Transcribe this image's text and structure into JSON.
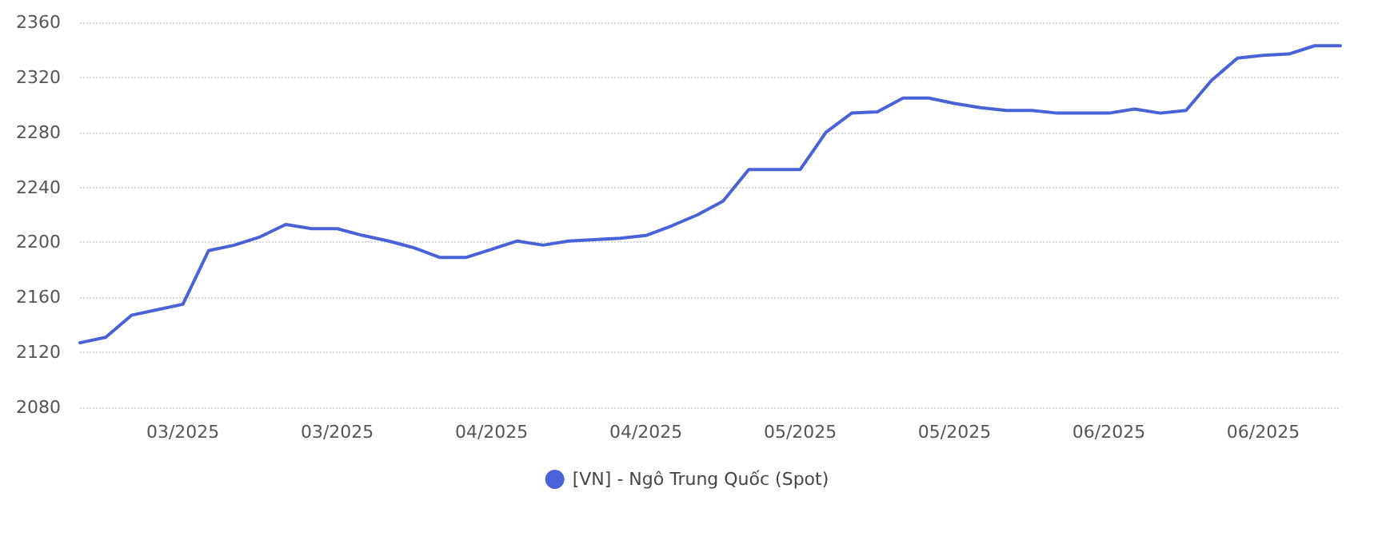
{
  "chart_data": {
    "type": "line",
    "categories": [
      null,
      null,
      null,
      null,
      "03/2025",
      null,
      null,
      null,
      null,
      null,
      "03/2025",
      null,
      null,
      null,
      null,
      null,
      "04/2025",
      null,
      null,
      null,
      null,
      null,
      "04/2025",
      null,
      null,
      null,
      null,
      null,
      "05/2025",
      null,
      null,
      null,
      null,
      null,
      "05/2025",
      null,
      null,
      null,
      null,
      null,
      "06/2025",
      null,
      null,
      null,
      null,
      null,
      "06/2025",
      null,
      null,
      null
    ],
    "series": [
      {
        "name": "[VN] - Ngô Trung Quốc (Spot)",
        "color": "#4a62d8",
        "values": [
          2127,
          2131,
          2147,
          2151,
          2155,
          2194,
          2198,
          2204,
          2213,
          2210,
          2210,
          2205,
          2201,
          2196,
          2189,
          2189,
          2195,
          2201,
          2198,
          2201,
          2202,
          2203,
          2205,
          2212,
          2220,
          2230,
          2253,
          2253,
          2253,
          2280,
          2294,
          2295,
          2305,
          2305,
          2301,
          2298,
          2296,
          2296,
          2294,
          2294,
          2294,
          2297,
          2294,
          2296,
          2318,
          2334,
          2336,
          2337,
          2343,
          2343
        ]
      }
    ],
    "ylim": [
      2080,
      2360
    ],
    "yticks": [
      2080,
      2120,
      2160,
      2200,
      2240,
      2280,
      2320,
      2360
    ],
    "grid": "y",
    "legend": "bottom",
    "marker": "none",
    "line_style": "solid"
  }
}
